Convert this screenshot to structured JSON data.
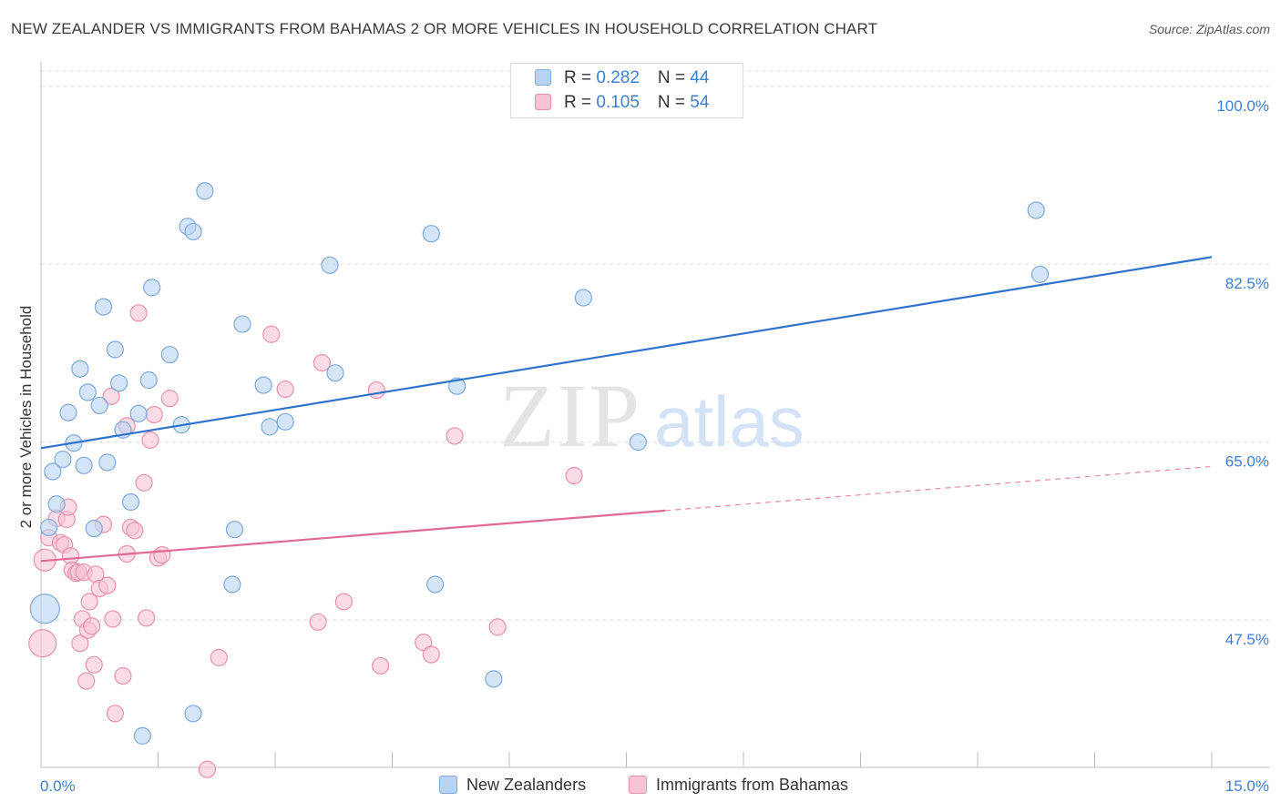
{
  "title": "NEW ZEALANDER VS IMMIGRANTS FROM BAHAMAS 2 OR MORE VEHICLES IN HOUSEHOLD CORRELATION CHART",
  "source": "Source: ZipAtlas.com",
  "watermark": {
    "zip": "ZIP",
    "atlas": "atlas"
  },
  "legend": {
    "series1": {
      "r_label": "R = ",
      "r_value": "0.282",
      "n_label": "N = ",
      "n_value": "44"
    },
    "series2": {
      "r_label": "R = ",
      "r_value": "0.105",
      "n_label": "N = ",
      "n_value": "54"
    }
  },
  "bottom_legend": [
    "New Zealanders",
    "Immigrants from Bahamas"
  ],
  "colors": {
    "blue_fill": "#b8d3f2",
    "blue_stroke": "#7ea9dc",
    "blue_line": "#2f72cc",
    "pink_fill": "#f8c3d3",
    "pink_stroke": "#e891ad",
    "pink_line": "#e06a96",
    "tick_label": "#3f7fd0",
    "grid": "#dddddd"
  },
  "chart_data": {
    "type": "scatter",
    "title": "NEW ZEALANDER VS IMMIGRANTS FROM BAHAMAS 2 OR MORE VEHICLES IN HOUSEHOLD CORRELATION CHART",
    "xlabel": "",
    "ylabel": "2 or more Vehicles in Household",
    "xlim": [
      0,
      15
    ],
    "ylim": [
      33,
      101.5
    ],
    "x_tick_labels": [
      "0.0%",
      "15.0%"
    ],
    "y_ticks": [
      47.5,
      65.0,
      82.5,
      100.0
    ],
    "y_tick_labels": [
      "47.5%",
      "65.0%",
      "82.5%",
      "100.0%"
    ],
    "grid": true,
    "series": [
      {
        "name": "New Zealanders",
        "R": 0.282,
        "N": 44,
        "trend": {
          "x": [
            0,
            15
          ],
          "y": [
            64.4,
            83.2
          ],
          "solid_to": 15
        },
        "points": [
          [
            0.05,
            48.6,
            16
          ],
          [
            0.1,
            56.6,
            9
          ],
          [
            0.15,
            62.1,
            9
          ],
          [
            0.2,
            58.9,
            9
          ],
          [
            0.28,
            63.3,
            9
          ],
          [
            0.35,
            67.9,
            9
          ],
          [
            0.42,
            64.9,
            9
          ],
          [
            0.5,
            72.2,
            9
          ],
          [
            0.55,
            62.7,
            9
          ],
          [
            0.6,
            69.9,
            9
          ],
          [
            0.68,
            56.5,
            9
          ],
          [
            0.75,
            68.6,
            9
          ],
          [
            0.8,
            78.3,
            9
          ],
          [
            0.85,
            63.0,
            9
          ],
          [
            0.95,
            74.1,
            9
          ],
          [
            1.0,
            70.8,
            9
          ],
          [
            1.05,
            66.2,
            9
          ],
          [
            1.15,
            59.1,
            9
          ],
          [
            1.25,
            67.8,
            9
          ],
          [
            1.3,
            36.1,
            9
          ],
          [
            1.38,
            71.1,
            9
          ],
          [
            1.42,
            80.2,
            9
          ],
          [
            1.65,
            73.6,
            9
          ],
          [
            1.8,
            66.7,
            9
          ],
          [
            1.88,
            86.2,
            9
          ],
          [
            1.95,
            38.3,
            9
          ],
          [
            1.95,
            85.7,
            9
          ],
          [
            2.1,
            89.7,
            9
          ],
          [
            2.45,
            51.0,
            9
          ],
          [
            2.48,
            56.4,
            9
          ],
          [
            2.58,
            76.6,
            9
          ],
          [
            2.85,
            70.6,
            9
          ],
          [
            2.93,
            66.5,
            9
          ],
          [
            3.13,
            67.0,
            9
          ],
          [
            3.7,
            82.4,
            9
          ],
          [
            3.77,
            71.8,
            9
          ],
          [
            5.0,
            85.5,
            9
          ],
          [
            5.05,
            51.0,
            9
          ],
          [
            5.33,
            70.5,
            9
          ],
          [
            5.8,
            41.7,
            9
          ],
          [
            6.95,
            79.2,
            9
          ],
          [
            7.65,
            65.0,
            9
          ],
          [
            12.75,
            87.8,
            9
          ],
          [
            12.8,
            81.5,
            9
          ]
        ]
      },
      {
        "name": "Immigrants from Bahamas",
        "R": 0.105,
        "N": 54,
        "trend": {
          "x": [
            0,
            15
          ],
          "y": [
            53.3,
            62.6
          ],
          "solid_to": 8.0
        },
        "points": [
          [
            0.02,
            45.2,
            15
          ],
          [
            0.05,
            53.4,
            12
          ],
          [
            0.1,
            55.6,
            9
          ],
          [
            0.2,
            57.5,
            9
          ],
          [
            0.25,
            55.1,
            9
          ],
          [
            0.3,
            54.9,
            9
          ],
          [
            0.33,
            57.4,
            9
          ],
          [
            0.35,
            58.6,
            9
          ],
          [
            0.38,
            53.8,
            9
          ],
          [
            0.4,
            52.4,
            9
          ],
          [
            0.45,
            52.1,
            9
          ],
          [
            0.48,
            52.2,
            9
          ],
          [
            0.5,
            45.2,
            9
          ],
          [
            0.53,
            47.6,
            9
          ],
          [
            0.55,
            52.2,
            9
          ],
          [
            0.58,
            41.5,
            9
          ],
          [
            0.6,
            46.5,
            9
          ],
          [
            0.62,
            49.3,
            9
          ],
          [
            0.65,
            46.9,
            9
          ],
          [
            0.68,
            43.1,
            9
          ],
          [
            0.7,
            52.0,
            9
          ],
          [
            0.75,
            50.6,
            9
          ],
          [
            0.8,
            56.9,
            9
          ],
          [
            0.85,
            50.9,
            9
          ],
          [
            0.9,
            69.5,
            9
          ],
          [
            0.92,
            47.6,
            9
          ],
          [
            0.95,
            38.3,
            9
          ],
          [
            1.05,
            42.0,
            9
          ],
          [
            1.1,
            54.0,
            9
          ],
          [
            1.1,
            66.6,
            9
          ],
          [
            1.15,
            56.6,
            9
          ],
          [
            1.2,
            56.3,
            9
          ],
          [
            1.25,
            77.7,
            9
          ],
          [
            1.32,
            61.0,
            9
          ],
          [
            1.35,
            47.7,
            9
          ],
          [
            1.4,
            65.2,
            9
          ],
          [
            1.45,
            67.7,
            9
          ],
          [
            1.5,
            53.6,
            9
          ],
          [
            1.55,
            53.9,
            9
          ],
          [
            1.65,
            69.3,
            9
          ],
          [
            2.13,
            32.8,
            9
          ],
          [
            2.28,
            43.8,
            9
          ],
          [
            2.95,
            75.6,
            9
          ],
          [
            3.13,
            70.2,
            9
          ],
          [
            3.55,
            47.3,
            9
          ],
          [
            3.6,
            72.8,
            9
          ],
          [
            3.88,
            49.3,
            9
          ],
          [
            4.3,
            70.1,
            9
          ],
          [
            4.35,
            43.0,
            9
          ],
          [
            4.9,
            45.3,
            9
          ],
          [
            5.0,
            44.1,
            9
          ],
          [
            5.3,
            65.6,
            9
          ],
          [
            5.85,
            46.8,
            9
          ],
          [
            6.83,
            61.7,
            9
          ]
        ]
      }
    ]
  }
}
